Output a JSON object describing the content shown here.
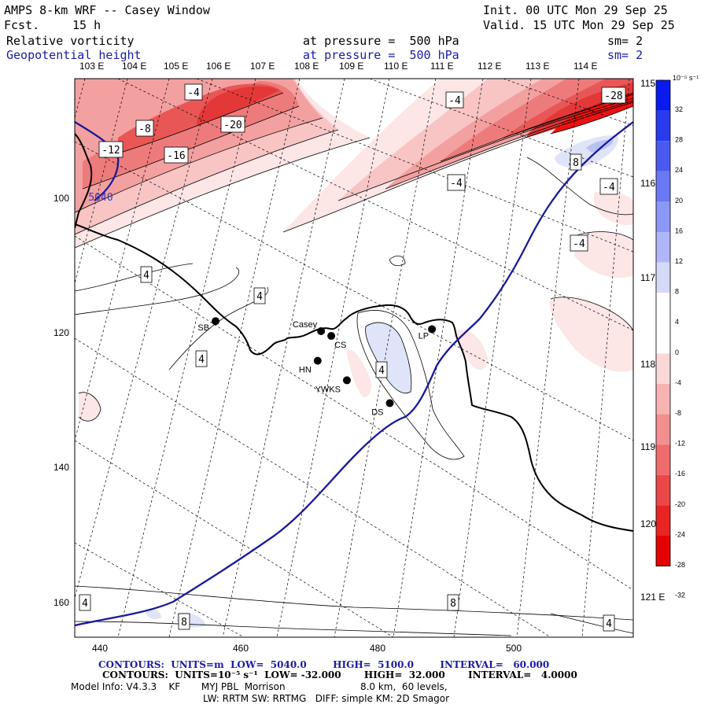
{
  "header": {
    "title": "AMPS 8-km WRF -- Casey Window",
    "fcst_label": "Fcst.",
    "fcst_value": "15 h",
    "init": "Init. 00 UTC Mon 29 Sep 25",
    "valid": "Valid. 15 UTC Mon 29 Sep 25",
    "field1": "Relative vorticity",
    "field1_level": "at pressure =  500 hPa",
    "field1_sm": "sm= 2",
    "field2": "Geopotential height",
    "field2_level": "at pressure =  500 hPa",
    "field2_sm": "sm= 2"
  },
  "lon_labels_top": [
    "103 E",
    "104 E",
    "105 E",
    "106 E",
    "107 E",
    "108 E",
    "109 E",
    "110 E",
    "111 E",
    "112 E",
    "113 E",
    "114 E"
  ],
  "lon_labels_right": [
    "115 E",
    "116 E",
    "117 E",
    "118 E",
    "119 E",
    "120 E",
    "121 E"
  ],
  "x_ticks": [
    "440",
    "460",
    "480",
    "500"
  ],
  "y_ticks": [
    "100",
    "120",
    "140",
    "160"
  ],
  "colorbar": {
    "unit": "10⁻⁵ s⁻¹",
    "labels": [
      "32",
      "28",
      "24",
      "20",
      "16",
      "12",
      "8",
      "4",
      "0",
      "-4",
      "-8",
      "-12",
      "-16",
      "-20",
      "-24",
      "-28",
      "-32"
    ]
  },
  "stations": [
    {
      "name": "SB",
      "x": 457,
      "y": 117.8
    },
    {
      "name": "Casey",
      "x": 472.5,
      "y": 119.3
    },
    {
      "name": "CS",
      "x": 474,
      "y": 120
    },
    {
      "name": "HN",
      "x": 472,
      "y": 123.7
    },
    {
      "name": "YWKS",
      "x": 476.3,
      "y": 126.6
    },
    {
      "name": "DS",
      "x": 482.6,
      "y": 130
    },
    {
      "name": "LP",
      "x": 488.8,
      "y": 119
    }
  ],
  "contour_labels": [
    "-4",
    "-8",
    "-12",
    "-16",
    "-20",
    "-28",
    "-4",
    "-4",
    "-4",
    "-4",
    "4",
    "4",
    "4",
    "4",
    "4",
    "4",
    "8",
    "8",
    "8",
    "5040"
  ],
  "footer": {
    "line1": "CONTOURS:  UNITS=m  LOW=  5040.0        HIGH=  5100.0        INTERVAL=   60.000",
    "line2": "CONTOURS:  UNITS=10⁻⁵ s⁻¹  LOW= -32.000       HIGH=  32.000       INTERVAL=   4.0000",
    "line3": "Model Info: V4.3.3    KF       MYJ PBL  Morrison                         8.0 km,  60 levels,",
    "line4": "LW: RRTM SW: RRTMG   DIFF: simple KM: 2D Smagor"
  }
}
